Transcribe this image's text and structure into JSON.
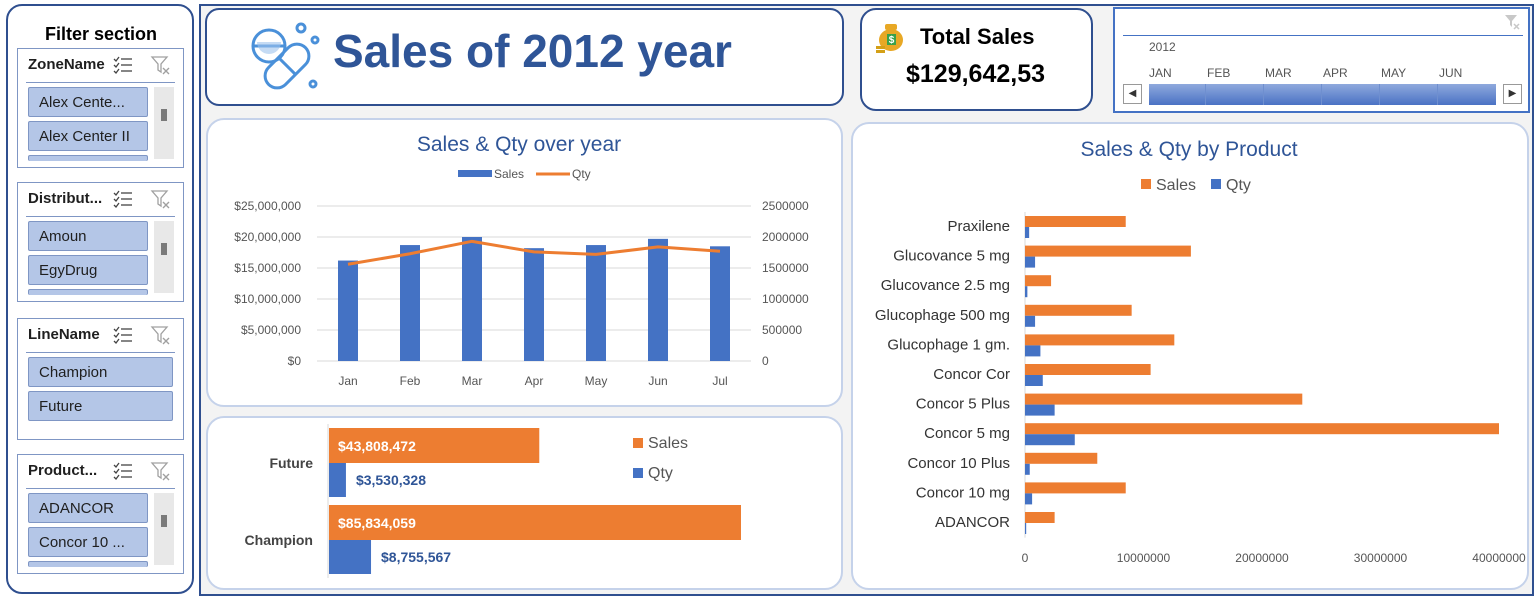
{
  "sidebar": {
    "title": "Filter section",
    "slicers": [
      {
        "name": "ZoneName",
        "items": [
          "Alex Cente...",
          "Alex Center II"
        ],
        "scroll": true
      },
      {
        "name": "Distribut...",
        "items": [
          "Amoun",
          "EgyDrug"
        ],
        "scroll": true
      },
      {
        "name": "LineName",
        "items": [
          "Champion",
          "Future"
        ],
        "scroll": false
      },
      {
        "name": "Product...",
        "items": [
          "ADANCOR",
          "Concor 10 ..."
        ],
        "scroll": true
      }
    ]
  },
  "header": {
    "title": "Sales of 2012 year"
  },
  "kpi": {
    "label": "Total Sales",
    "value": "$129,642,53"
  },
  "timeline": {
    "year": "2012",
    "months": [
      "JAN",
      "FEB",
      "MAR",
      "APR",
      "MAY",
      "JUN"
    ]
  },
  "colors": {
    "sales": "#ed7d31",
    "qty": "#4472c4",
    "title": "#2f5597",
    "border": "#2f4f8f"
  },
  "chart_data": [
    {
      "type": "bar",
      "title": "Sales & Qty over year",
      "legend": [
        "Sales",
        "Qty"
      ],
      "legend_position": "top",
      "categories": [
        "Jan",
        "Feb",
        "Mar",
        "Apr",
        "May",
        "Jun",
        "Jul"
      ],
      "series": [
        {
          "name": "Sales",
          "type": "bar",
          "axis": "left",
          "values": [
            16200000,
            18700000,
            20000000,
            18200000,
            18700000,
            19700000,
            18500000
          ]
        },
        {
          "name": "Qty",
          "type": "line",
          "axis": "right",
          "values": [
            1560000,
            1730000,
            1930000,
            1760000,
            1720000,
            1840000,
            1770000
          ]
        }
      ],
      "ylim": [
        0,
        25000000
      ],
      "yticks": [
        "$0",
        "$5,000,000",
        "$10,000,000",
        "$15,000,000",
        "$20,000,000",
        "$25,000,000"
      ],
      "y2lim": [
        0,
        2500000
      ],
      "y2ticks": [
        "0",
        "500000",
        "1000000",
        "1500000",
        "2000000",
        "2500000"
      ],
      "grid": true
    },
    {
      "type": "bar",
      "orientation": "horizontal",
      "categories": [
        "Future",
        "Champion"
      ],
      "series": [
        {
          "name": "Sales",
          "values": [
            43808472,
            85834059
          ],
          "labels": [
            "$43,808,472",
            "$85,834,059"
          ]
        },
        {
          "name": "Qty",
          "values": [
            3530328,
            8755567
          ],
          "labels": [
            "$3,530,328",
            "$8,755,567"
          ]
        }
      ],
      "legend": [
        "Sales",
        "Qty"
      ],
      "legend_position": "right",
      "xlim": [
        0,
        90000000
      ]
    },
    {
      "type": "bar",
      "orientation": "horizontal",
      "title": "Sales & Qty by Product",
      "legend": [
        "Sales",
        "Qty"
      ],
      "legend_position": "top",
      "categories": [
        "Praxilene",
        "Glucovance 5 mg",
        "Glucovance 2.5 mg",
        "Glucophage 500 mg",
        "Glucophage 1 gm.",
        "Concor Cor",
        "Concor 5 Plus",
        "Concor 5 mg",
        "Concor 10 Plus",
        "Concor 10 mg",
        "ADANCOR"
      ],
      "series": [
        {
          "name": "Sales",
          "values": [
            8500000,
            14000000,
            2200000,
            9000000,
            12600000,
            10600000,
            23400000,
            40000000,
            6100000,
            8500000,
            2500000
          ]
        },
        {
          "name": "Qty",
          "values": [
            350000,
            850000,
            200000,
            850000,
            1300000,
            1500000,
            2500000,
            4200000,
            400000,
            600000,
            100000
          ]
        }
      ],
      "xlim": [
        0,
        40000000
      ],
      "xticks": [
        "0",
        "10000000",
        "20000000",
        "30000000",
        "40000000"
      ]
    }
  ]
}
